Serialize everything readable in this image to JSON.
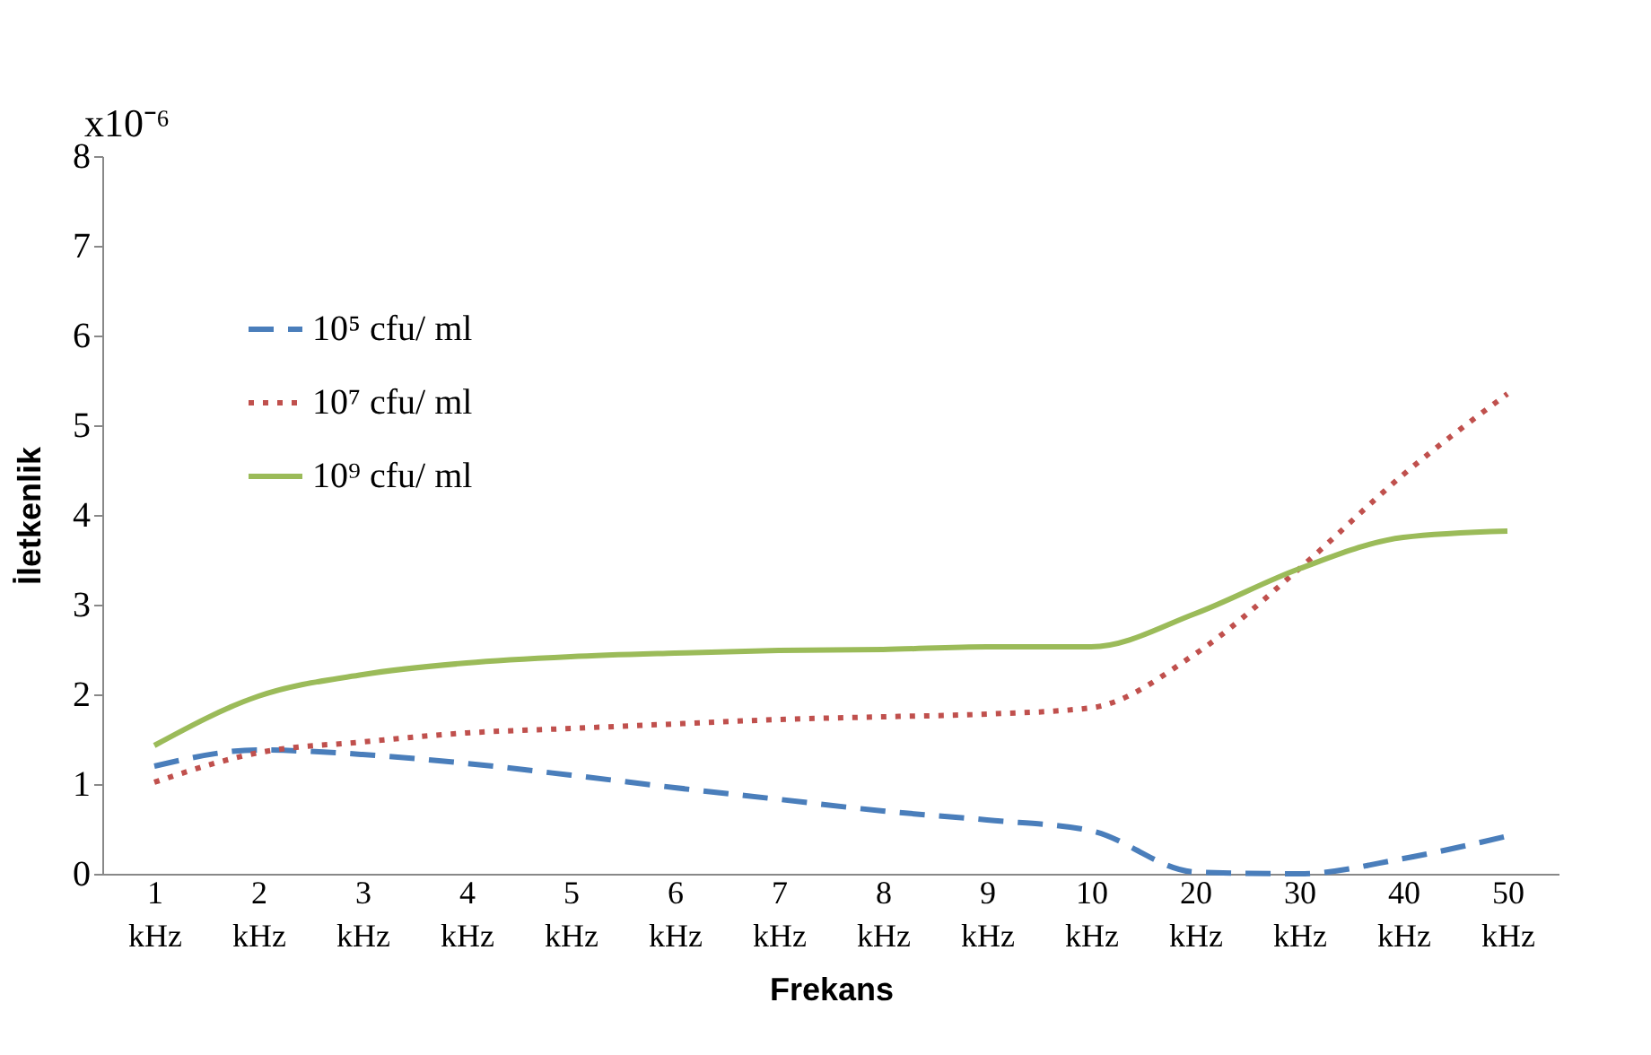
{
  "chart_data": {
    "type": "line",
    "xlabel": "Frekans",
    "ylabel": "İletkenlik",
    "annotations": [
      "x10⁻⁶"
    ],
    "categories": [
      "1 kHz",
      "2 kHz",
      "3 kHz",
      "4 kHz",
      "5 kHz",
      "6 kHz",
      "7 kHz",
      "8 kHz",
      "9 kHz",
      "10 kHz",
      "20 kHz",
      "30 kHz",
      "40 kHz",
      "50 kHz"
    ],
    "ylim": [
      0,
      8
    ],
    "yticks": [
      0,
      1,
      2,
      3,
      4,
      5,
      6,
      7,
      8
    ],
    "grid": false,
    "legend": "top left",
    "marker": "none",
    "series": [
      {
        "name": "10⁵ cfu/ ml",
        "color": "#4a7ebb",
        "line_style": "dashed",
        "values": [
          1.2,
          1.38,
          1.33,
          1.23,
          1.1,
          0.96,
          0.83,
          0.7,
          0.6,
          0.48,
          0.02,
          0,
          0.17,
          0.42
        ]
      },
      {
        "name": "10⁷ cfu/ ml",
        "color": "#c0504d",
        "line_style": "dotted",
        "values": [
          1.02,
          1.35,
          1.47,
          1.57,
          1.62,
          1.67,
          1.72,
          1.75,
          1.78,
          1.85,
          2.45,
          3.4,
          4.45,
          5.35
        ]
      },
      {
        "name": "10⁹ cfu/ ml",
        "color": "#9bbb59",
        "line_style": "solid",
        "values": [
          1.43,
          1.98,
          2.22,
          2.35,
          2.42,
          2.46,
          2.49,
          2.5,
          2.53,
          2.53,
          2.9,
          3.4,
          3.75,
          3.82
        ]
      }
    ]
  }
}
